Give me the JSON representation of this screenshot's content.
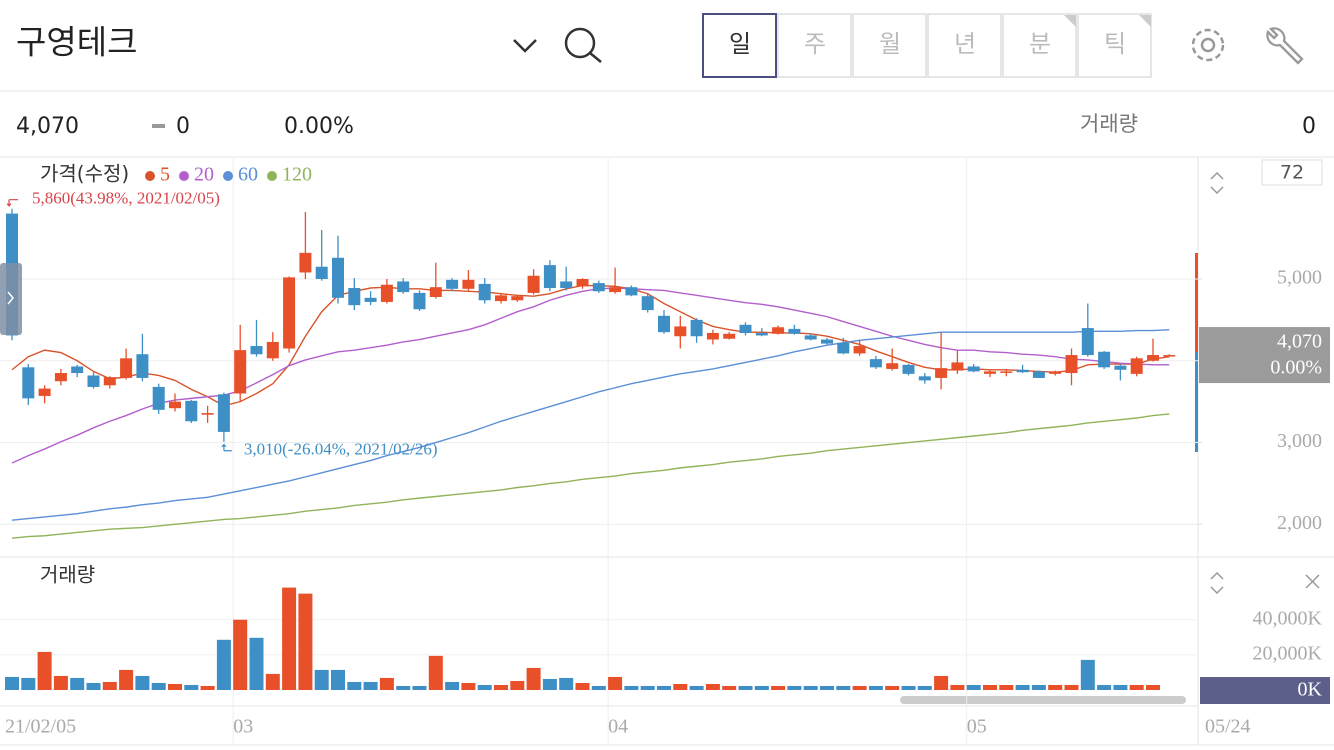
{
  "header": {
    "title": "구영테크",
    "tabs": [
      "일",
      "주",
      "월",
      "년",
      "분",
      "틱"
    ],
    "selected_tab": 0
  },
  "quote": {
    "price": "4,070",
    "change": "0",
    "change_rate": "0.00%",
    "volume_label": "거래량",
    "volume": "0"
  },
  "chart_data": [
    {
      "type": "candlestick",
      "title": "가격(수정)",
      "categories": [
        "21/02/05",
        null,
        null,
        null,
        null,
        null,
        null,
        null,
        null,
        null,
        null,
        null,
        null,
        null,
        "03",
        null,
        null,
        null,
        null,
        null,
        null,
        null,
        null,
        null,
        null,
        null,
        null,
        null,
        null,
        null,
        null,
        null,
        null,
        null,
        null,
        null,
        null,
        "04",
        null,
        null,
        null,
        null,
        null,
        null,
        null,
        null,
        null,
        null,
        null,
        null,
        null,
        null,
        null,
        null,
        null,
        null,
        null,
        null,
        null,
        "05",
        null,
        null,
        null,
        null,
        null,
        null,
        null,
        null,
        null,
        null,
        null,
        null
      ],
      "open": [
        5800,
        3920,
        3570,
        3750,
        3930,
        3820,
        3700,
        3790,
        4080,
        3680,
        3420,
        3510,
        3340,
        3590,
        3600,
        4180,
        4030,
        4150,
        5080,
        5150,
        5260,
        4890,
        4770,
        4720,
        4970,
        4830,
        4780,
        4990,
        4880,
        4940,
        4730,
        4740,
        4830,
        5170,
        4970,
        4910,
        4950,
        4840,
        4900,
        4790,
        4550,
        4300,
        4500,
        4260,
        4270,
        4440,
        4340,
        4330,
        4390,
        4310,
        4260,
        4220,
        4090,
        4020,
        3900,
        3950,
        3810,
        3790,
        3880,
        3930,
        3840,
        3860,
        3890,
        3870,
        3840,
        3850,
        4400,
        4110,
        3940,
        3840,
        4000,
        4070
      ],
      "high": [
        5860,
        3960,
        3700,
        3900,
        3950,
        3860,
        3810,
        4150,
        4330,
        3720,
        3600,
        3520,
        3450,
        3610,
        4440,
        4500,
        4350,
        5030,
        5820,
        5600,
        5530,
        5010,
        4850,
        5000,
        5010,
        4860,
        5200,
        5010,
        5110,
        5010,
        4830,
        4800,
        5120,
        5230,
        5150,
        5010,
        4980,
        5140,
        4920,
        4830,
        4620,
        4550,
        4520,
        4380,
        4350,
        4470,
        4400,
        4430,
        4440,
        4330,
        4280,
        4280,
        4250,
        4060,
        4150,
        3960,
        3850,
        4350,
        4130,
        3960,
        3890,
        3900,
        3950,
        3880,
        3880,
        4150,
        4700,
        4120,
        3960,
        4050,
        4270,
        4080
      ],
      "low": [
        4250,
        3460,
        3480,
        3700,
        3800,
        3660,
        3660,
        3770,
        3750,
        3350,
        3380,
        3240,
        3240,
        3010,
        3500,
        4050,
        4000,
        4100,
        5000,
        4980,
        4700,
        4620,
        4680,
        4700,
        4820,
        4610,
        4760,
        4850,
        4860,
        4700,
        4700,
        4720,
        4810,
        4850,
        4860,
        4880,
        4830,
        4820,
        4790,
        4590,
        4330,
        4150,
        4220,
        4200,
        4260,
        4310,
        4300,
        4320,
        4320,
        4250,
        4200,
        4080,
        4060,
        3900,
        3880,
        3820,
        3720,
        3650,
        3840,
        3860,
        3800,
        3810,
        3850,
        3790,
        3820,
        3700,
        4050,
        3900,
        3760,
        3810,
        3990,
        4060
      ],
      "close": [
        4310,
        3540,
        3660,
        3850,
        3850,
        3680,
        3800,
        4030,
        3790,
        3400,
        3500,
        3260,
        3360,
        3130,
        4130,
        4080,
        4230,
        5020,
        5320,
        5000,
        4770,
        4680,
        4720,
        4930,
        4840,
        4630,
        4900,
        4880,
        4990,
        4740,
        4800,
        4790,
        5040,
        4890,
        4890,
        5000,
        4850,
        4900,
        4800,
        4620,
        4350,
        4420,
        4300,
        4340,
        4330,
        4340,
        4310,
        4410,
        4330,
        4260,
        4210,
        4090,
        4180,
        3920,
        3970,
        3840,
        3760,
        3910,
        3980,
        3870,
        3870,
        3870,
        3860,
        3790,
        3870,
        4070,
        4070,
        3920,
        3890,
        4030,
        4070,
        4070
      ],
      "up_color": "#e8502a",
      "down_color": "#3d8fc6",
      "series": [
        {
          "name": "5",
          "color": "#d9542a",
          "values": [
            3890,
            4050,
            4130,
            4100,
            4000,
            3870,
            3780,
            3800,
            3850,
            3820,
            3760,
            3650,
            3560,
            3450,
            3500,
            3600,
            3720,
            3950,
            4300,
            4600,
            4800,
            4850,
            4890,
            4900,
            4880,
            4880,
            4860,
            4860,
            4850,
            4840,
            4820,
            4800,
            4790,
            4820,
            4880,
            4920,
            4920,
            4910,
            4880,
            4820,
            4700,
            4600,
            4500,
            4420,
            4380,
            4350,
            4350,
            4340,
            4340,
            4330,
            4300,
            4250,
            4200,
            4120,
            4050,
            3980,
            3920,
            3890,
            3890,
            3900,
            3890,
            3890,
            3880,
            3870,
            3860,
            3880,
            3950,
            3960,
            3960,
            3960,
            4020,
            4050
          ]
        },
        {
          "name": "20",
          "color": "#b35fcc",
          "values": [
            2750,
            2840,
            2920,
            3010,
            3090,
            3180,
            3260,
            3330,
            3410,
            3480,
            3520,
            3540,
            3560,
            3580,
            3630,
            3730,
            3830,
            3940,
            4010,
            4060,
            4110,
            4130,
            4160,
            4190,
            4230,
            4260,
            4300,
            4340,
            4380,
            4440,
            4520,
            4600,
            4660,
            4740,
            4800,
            4850,
            4880,
            4890,
            4880,
            4870,
            4860,
            4830,
            4800,
            4770,
            4740,
            4710,
            4690,
            4660,
            4620,
            4580,
            4540,
            4480,
            4420,
            4360,
            4300,
            4250,
            4200,
            4160,
            4130,
            4130,
            4110,
            4100,
            4080,
            4070,
            4050,
            4020,
            4010,
            3990,
            3970,
            3960,
            3950,
            3950
          ]
        },
        {
          "name": "60",
          "color": "#5b8fd6",
          "values": [
            2050,
            2070,
            2090,
            2110,
            2130,
            2160,
            2190,
            2210,
            2240,
            2260,
            2290,
            2310,
            2330,
            2370,
            2410,
            2450,
            2490,
            2530,
            2580,
            2630,
            2680,
            2730,
            2780,
            2840,
            2890,
            2940,
            3000,
            3060,
            3120,
            3190,
            3260,
            3320,
            3380,
            3440,
            3500,
            3560,
            3620,
            3670,
            3720,
            3760,
            3800,
            3840,
            3870,
            3900,
            3940,
            3980,
            4020,
            4060,
            4110,
            4150,
            4190,
            4220,
            4250,
            4270,
            4290,
            4310,
            4330,
            4350,
            4350,
            4350,
            4350,
            4350,
            4350,
            4350,
            4350,
            4350,
            4360,
            4360,
            4360,
            4370,
            4370,
            4380
          ]
        },
        {
          "name": "120",
          "color": "#8fb45a",
          "values": [
            1830,
            1850,
            1860,
            1880,
            1900,
            1920,
            1940,
            1950,
            1960,
            1980,
            2000,
            2020,
            2040,
            2060,
            2070,
            2090,
            2110,
            2130,
            2160,
            2180,
            2200,
            2230,
            2250,
            2270,
            2300,
            2320,
            2340,
            2360,
            2380,
            2400,
            2420,
            2450,
            2470,
            2500,
            2520,
            2550,
            2570,
            2590,
            2620,
            2640,
            2660,
            2690,
            2710,
            2730,
            2760,
            2780,
            2800,
            2830,
            2850,
            2870,
            2900,
            2920,
            2940,
            2960,
            2980,
            3000,
            3020,
            3040,
            3060,
            3080,
            3100,
            3120,
            3150,
            3170,
            3190,
            3210,
            3240,
            3260,
            3280,
            3300,
            3330,
            3350
          ]
        }
      ],
      "ylim": [
        1600,
        6480
      ],
      "yticks": [
        {
          "value": 2000,
          "label": "2,000"
        },
        {
          "value": 3000,
          "label": "3,000"
        },
        {
          "value": 5000,
          "label": "5,000"
        }
      ],
      "grid_values": [
        2000,
        3000,
        4000,
        5000
      ],
      "annotations": [
        {
          "text": "5,860(43.98%, 2021/02/05)",
          "index": 0,
          "value": 5860
        },
        {
          "text": "3,010(-26.04%, 2021/02/26)",
          "index": 13,
          "value": 3010
        }
      ],
      "count_label": 72,
      "last_price": {
        "value": 4070,
        "label": "4,070",
        "change": "0.00%"
      },
      "last_date": "05/24"
    },
    {
      "type": "bar",
      "title": "거래량",
      "values": [
        7430,
        6860,
        21700,
        8000,
        6860,
        4000,
        4570,
        11430,
        8000,
        4000,
        3430,
        2860,
        2290,
        28570,
        40000,
        29710,
        9140,
        58290,
        54860,
        11430,
        11430,
        4570,
        4570,
        6860,
        2290,
        2290,
        19430,
        4570,
        4000,
        2860,
        2860,
        5140,
        12570,
        6290,
        6860,
        4000,
        2290,
        7430,
        2290,
        2290,
        2290,
        3430,
        2290,
        3430,
        2290,
        2290,
        2290,
        2290,
        2290,
        2290,
        2290,
        2290,
        2290,
        2290,
        2290,
        2290,
        2290,
        8000,
        2860,
        2860,
        2860,
        2860,
        2860,
        2860,
        2860,
        2860,
        17140,
        2860,
        2860,
        2860,
        2860,
        0
      ],
      "ylim": [
        0,
        74000
      ],
      "yticks": [
        {
          "value": 20000,
          "label": "20,000K"
        },
        {
          "value": 40000,
          "label": "40,000K"
        }
      ],
      "current_label": "0K"
    }
  ]
}
